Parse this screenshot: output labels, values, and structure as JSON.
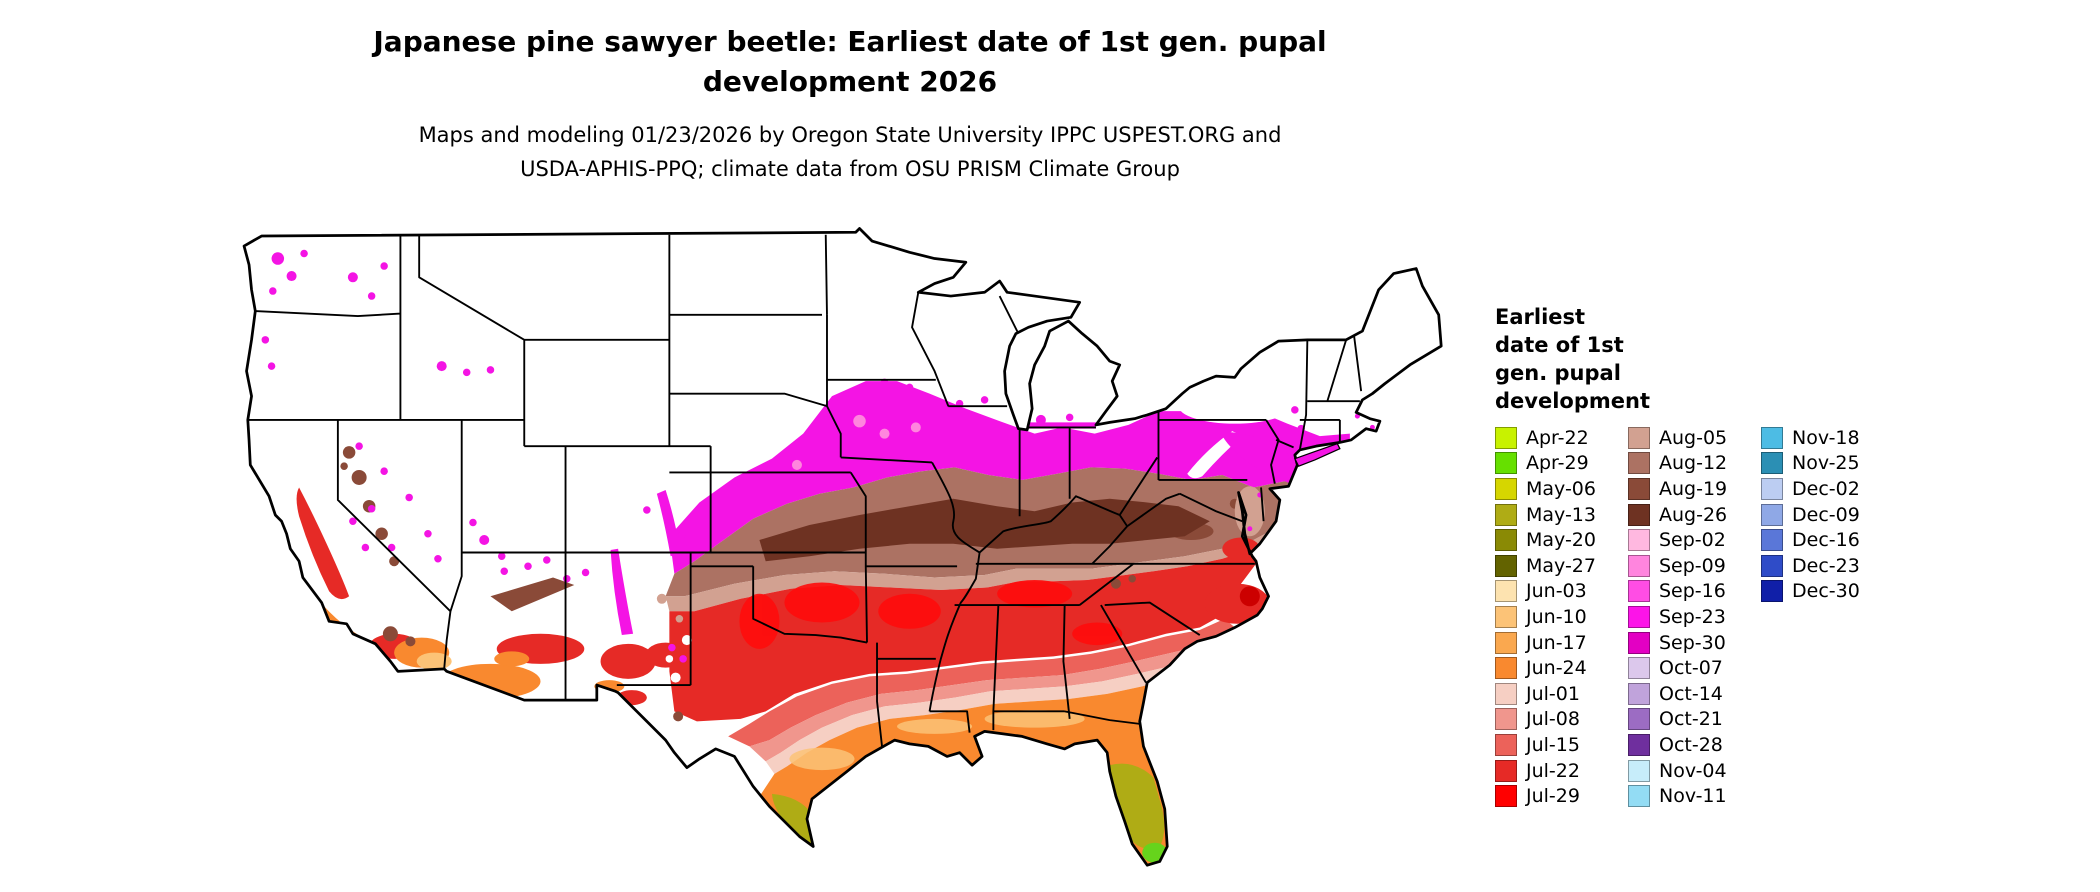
{
  "title": {
    "line1": "Japanese pine sawyer beetle: Earliest date of 1st gen. pupal",
    "line2": "development 2026"
  },
  "subtitle": {
    "line1": "Maps and modeling 01/23/2026 by Oregon State University IPPC USPEST.ORG and",
    "line2": "USDA-APHIS-PPQ; climate data from OSU PRISM Climate Group"
  },
  "legend": {
    "title": "Earliest\ndate of 1st\ngen. pupal\ndevelopment",
    "columns": [
      {
        "entries": [
          {
            "label": "Apr-22",
            "color": "#C8F200"
          },
          {
            "label": "Apr-29",
            "color": "#66E000"
          },
          {
            "label": "May-06",
            "color": "#D6D600"
          },
          {
            "label": "May-13",
            "color": "#AFAC15"
          },
          {
            "label": "May-20",
            "color": "#8A8A05"
          },
          {
            "label": "May-27",
            "color": "#636300"
          },
          {
            "label": "Jun-03",
            "color": "#FDE3B0"
          },
          {
            "label": "Jun-10",
            "color": "#FCC377"
          },
          {
            "label": "Jun-17",
            "color": "#FAA84F"
          },
          {
            "label": "Jun-24",
            "color": "#F9892F"
          },
          {
            "label": "Jul-01",
            "color": "#F6CFC3"
          },
          {
            "label": "Jul-08",
            "color": "#F0968D"
          },
          {
            "label": "Jul-15",
            "color": "#EC625A"
          },
          {
            "label": "Jul-22",
            "color": "#E62A26"
          },
          {
            "label": "Jul-29",
            "color": "#FF0000"
          }
        ]
      },
      {
        "entries": [
          {
            "label": "Aug-05",
            "color": "#D2A191"
          },
          {
            "label": "Aug-12",
            "color": "#AC7263"
          },
          {
            "label": "Aug-19",
            "color": "#8A4A38"
          },
          {
            "label": "Aug-26",
            "color": "#6E3222"
          },
          {
            "label": "Sep-02",
            "color": "#FFB8E0"
          },
          {
            "label": "Sep-09",
            "color": "#FF85DE"
          },
          {
            "label": "Sep-16",
            "color": "#FF4DE4"
          },
          {
            "label": "Sep-23",
            "color": "#FC14E8"
          },
          {
            "label": "Sep-30",
            "color": "#E300C3"
          },
          {
            "label": "Oct-07",
            "color": "#DCC8EC"
          },
          {
            "label": "Oct-14",
            "color": "#C0A3DB"
          },
          {
            "label": "Oct-21",
            "color": "#9C6CC3"
          },
          {
            "label": "Oct-28",
            "color": "#6F2F9E"
          },
          {
            "label": "Nov-04",
            "color": "#C7EDFA"
          },
          {
            "label": "Nov-11",
            "color": "#93DCF4"
          }
        ]
      },
      {
        "entries": [
          {
            "label": "Nov-18",
            "color": "#4DBCE4"
          },
          {
            "label": "Nov-25",
            "color": "#2B8FB4"
          },
          {
            "label": "Dec-02",
            "color": "#BCCDF2"
          },
          {
            "label": "Dec-09",
            "color": "#8FA8E6"
          },
          {
            "label": "Dec-16",
            "color": "#5A77D8"
          },
          {
            "label": "Dec-23",
            "color": "#2F4CC8"
          },
          {
            "label": "Dec-30",
            "color": "#101FA8"
          }
        ]
      }
    ]
  },
  "map": {
    "region": "Continental United States",
    "no_data_color": "#FFFFFF"
  }
}
